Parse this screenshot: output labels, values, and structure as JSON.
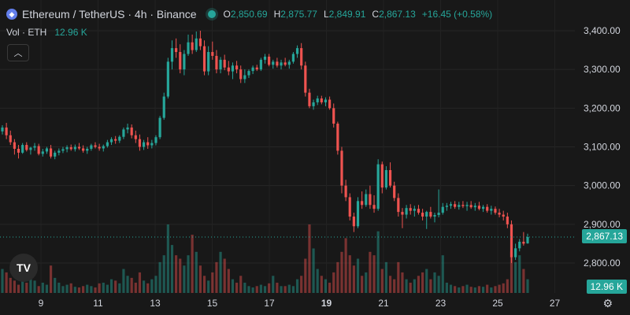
{
  "legend": {
    "symbol": "Ethereum / TetherUS · 4h · Binance",
    "symbol_icon": "ethereum-icon",
    "open_key": "O",
    "open": "2,850.69",
    "high_key": "H",
    "high": "2,875.77",
    "low_key": "L",
    "low": "2,849.91",
    "close_key": "C",
    "close": "2,867.13",
    "change": "+16.45 (+0.58%)"
  },
  "volume_legend": {
    "label": "Vol · ETH",
    "value": "12.96 K"
  },
  "collapse_icon": "chevron-up-icon",
  "logo_text": "TV",
  "current_price_tag": "2,867.13",
  "current_volume_tag": "12.96 K",
  "colors": {
    "up": "#26a69a",
    "down": "#ef5350",
    "bg": "#181818"
  },
  "chart_data": {
    "type": "candlestick",
    "price_axis_ticks": [
      "3,400.00",
      "3,300.00",
      "3,200.00",
      "3,100.00",
      "3,000.00",
      "2,900.00",
      "2,800.00"
    ],
    "price_range": [
      2780,
      3420
    ],
    "time_axis_ticks": [
      "9",
      "11",
      "13",
      "15",
      "17",
      "19",
      "21",
      "23",
      "25",
      "27"
    ],
    "time_axis_bold": [
      "19"
    ],
    "current_price": 2867.13,
    "candles": [
      [
        3140,
        3156,
        3132,
        3150
      ],
      [
        3150,
        3162,
        3120,
        3130
      ],
      [
        3130,
        3142,
        3105,
        3112
      ],
      [
        3112,
        3120,
        3080,
        3095
      ],
      [
        3095,
        3105,
        3070,
        3085
      ],
      [
        3085,
        3110,
        3082,
        3105
      ],
      [
        3105,
        3112,
        3088,
        3092
      ],
      [
        3092,
        3100,
        3080,
        3098
      ],
      [
        3098,
        3110,
        3090,
        3102
      ],
      [
        3102,
        3108,
        3078,
        3082
      ],
      [
        3082,
        3095,
        3075,
        3088
      ],
      [
        3088,
        3100,
        3082,
        3096
      ],
      [
        3096,
        3105,
        3070,
        3075
      ],
      [
        3075,
        3090,
        3068,
        3085
      ],
      [
        3085,
        3096,
        3078,
        3090
      ],
      [
        3090,
        3100,
        3084,
        3094
      ],
      [
        3094,
        3104,
        3086,
        3099
      ],
      [
        3099,
        3106,
        3090,
        3094
      ],
      [
        3094,
        3106,
        3088,
        3100
      ],
      [
        3100,
        3110,
        3092,
        3096
      ],
      [
        3096,
        3104,
        3085,
        3090
      ],
      [
        3090,
        3100,
        3082,
        3095
      ],
      [
        3095,
        3108,
        3090,
        3104
      ],
      [
        3104,
        3112,
        3096,
        3100
      ],
      [
        3100,
        3108,
        3090,
        3096
      ],
      [
        3096,
        3106,
        3088,
        3102
      ],
      [
        3102,
        3118,
        3098,
        3112
      ],
      [
        3112,
        3125,
        3105,
        3120
      ],
      [
        3120,
        3128,
        3108,
        3116
      ],
      [
        3116,
        3130,
        3110,
        3126
      ],
      [
        3126,
        3150,
        3120,
        3145
      ],
      [
        3145,
        3160,
        3135,
        3150
      ],
      [
        3150,
        3158,
        3122,
        3130
      ],
      [
        3130,
        3142,
        3110,
        3120
      ],
      [
        3120,
        3132,
        3090,
        3100
      ],
      [
        3100,
        3118,
        3092,
        3112
      ],
      [
        3112,
        3125,
        3095,
        3104
      ],
      [
        3104,
        3118,
        3096,
        3110
      ],
      [
        3110,
        3130,
        3104,
        3125
      ],
      [
        3125,
        3180,
        3120,
        3175
      ],
      [
        3175,
        3240,
        3170,
        3230
      ],
      [
        3230,
        3330,
        3225,
        3320
      ],
      [
        3320,
        3375,
        3300,
        3355
      ],
      [
        3355,
        3380,
        3330,
        3345
      ],
      [
        3345,
        3365,
        3290,
        3300
      ],
      [
        3300,
        3350,
        3285,
        3340
      ],
      [
        3340,
        3390,
        3335,
        3370
      ],
      [
        3370,
        3390,
        3340,
        3350
      ],
      [
        3350,
        3398,
        3345,
        3380
      ],
      [
        3380,
        3400,
        3350,
        3360
      ],
      [
        3360,
        3375,
        3285,
        3295
      ],
      [
        3295,
        3360,
        3285,
        3345
      ],
      [
        3345,
        3372,
        3325,
        3335
      ],
      [
        3335,
        3350,
        3290,
        3300
      ],
      [
        3300,
        3332,
        3290,
        3325
      ],
      [
        3325,
        3338,
        3298,
        3305
      ],
      [
        3305,
        3322,
        3285,
        3295
      ],
      [
        3295,
        3318,
        3275,
        3310
      ],
      [
        3310,
        3322,
        3290,
        3300
      ],
      [
        3300,
        3310,
        3265,
        3275
      ],
      [
        3275,
        3300,
        3265,
        3285
      ],
      [
        3285,
        3300,
        3278,
        3296
      ],
      [
        3296,
        3310,
        3288,
        3305
      ],
      [
        3305,
        3312,
        3296,
        3300
      ],
      [
        3300,
        3330,
        3296,
        3325
      ],
      [
        3325,
        3340,
        3315,
        3333
      ],
      [
        3333,
        3340,
        3308,
        3312
      ],
      [
        3312,
        3325,
        3302,
        3320
      ],
      [
        3320,
        3330,
        3305,
        3310
      ],
      [
        3310,
        3325,
        3300,
        3318
      ],
      [
        3318,
        3330,
        3308,
        3312
      ],
      [
        3312,
        3325,
        3302,
        3320
      ],
      [
        3320,
        3345,
        3315,
        3340
      ],
      [
        3340,
        3362,
        3330,
        3355
      ],
      [
        3355,
        3368,
        3300,
        3310
      ],
      [
        3310,
        3320,
        3230,
        3240
      ],
      [
        3240,
        3250,
        3200,
        3205
      ],
      [
        3205,
        3222,
        3196,
        3215
      ],
      [
        3215,
        3232,
        3208,
        3225
      ],
      [
        3225,
        3232,
        3210,
        3215
      ],
      [
        3215,
        3228,
        3205,
        3222
      ],
      [
        3222,
        3230,
        3196,
        3200
      ],
      [
        3200,
        3212,
        3150,
        3160
      ],
      [
        3160,
        3165,
        3080,
        3090
      ],
      [
        3090,
        3100,
        2980,
        3000
      ],
      [
        3000,
        3015,
        2960,
        2970
      ],
      [
        2970,
        2980,
        2910,
        2920
      ],
      [
        2920,
        2930,
        2880,
        2895
      ],
      [
        2895,
        2970,
        2890,
        2960
      ],
      [
        2960,
        2985,
        2940,
        2950
      ],
      [
        2950,
        2990,
        2945,
        2978
      ],
      [
        2978,
        3000,
        2940,
        2950
      ],
      [
        2950,
        2975,
        2930,
        2940
      ],
      [
        2940,
        3068,
        2935,
        3055
      ],
      [
        3055,
        3062,
        2980,
        2995
      ],
      [
        2995,
        3050,
        2990,
        3040
      ],
      [
        3040,
        3060,
        2995,
        3000
      ],
      [
        3000,
        3010,
        2960,
        2968
      ],
      [
        2968,
        2980,
        2920,
        2932
      ],
      [
        2932,
        2942,
        2890,
        2925
      ],
      [
        2925,
        2950,
        2915,
        2942
      ],
      [
        2942,
        2952,
        2925,
        2935
      ],
      [
        2935,
        2948,
        2920,
        2940
      ],
      [
        2940,
        2950,
        2925,
        2930
      ],
      [
        2930,
        2940,
        2910,
        2920
      ],
      [
        2920,
        2935,
        2888,
        2932
      ],
      [
        2932,
        2945,
        2915,
        2920
      ],
      [
        2920,
        2930,
        2905,
        2924
      ],
      [
        2924,
        2990,
        2918,
        2930
      ],
      [
        2930,
        2955,
        2925,
        2945
      ],
      [
        2945,
        2955,
        2935,
        2948
      ],
      [
        2948,
        2958,
        2940,
        2952
      ],
      [
        2952,
        2960,
        2940,
        2945
      ],
      [
        2945,
        2958,
        2938,
        2950
      ],
      [
        2950,
        2960,
        2942,
        2947
      ],
      [
        2947,
        2958,
        2935,
        2950
      ],
      [
        2950,
        2960,
        2940,
        2944
      ],
      [
        2944,
        2955,
        2935,
        2948
      ],
      [
        2948,
        2958,
        2936,
        2940
      ],
      [
        2940,
        2950,
        2932,
        2945
      ],
      [
        2945,
        2952,
        2930,
        2935
      ],
      [
        2935,
        2948,
        2925,
        2940
      ],
      [
        2940,
        2946,
        2925,
        2930
      ],
      [
        2930,
        2940,
        2918,
        2925
      ],
      [
        2925,
        2935,
        2910,
        2920
      ],
      [
        2920,
        2930,
        2890,
        2900
      ],
      [
        2900,
        2910,
        2800,
        2815
      ],
      [
        2815,
        2850,
        2808,
        2838
      ],
      [
        2838,
        2862,
        2830,
        2855
      ],
      [
        2855,
        2880,
        2845,
        2850
      ],
      [
        2850.69,
        2875.77,
        2849.91,
        2867.13
      ]
    ],
    "volumes": [
      0.35,
      0.3,
      0.22,
      0.18,
      0.12,
      0.2,
      0.15,
      0.28,
      0.18,
      0.1,
      0.15,
      0.12,
      0.4,
      0.22,
      0.15,
      0.1,
      0.12,
      0.14,
      0.09,
      0.08,
      0.1,
      0.12,
      0.1,
      0.08,
      0.14,
      0.15,
      0.12,
      0.2,
      0.18,
      0.14,
      0.35,
      0.25,
      0.22,
      0.15,
      0.3,
      0.18,
      0.14,
      0.2,
      0.25,
      0.45,
      0.55,
      1.0,
      0.7,
      0.55,
      0.5,
      0.4,
      0.55,
      0.85,
      0.6,
      0.4,
      0.25,
      0.18,
      0.3,
      0.45,
      0.6,
      0.5,
      0.35,
      0.2,
      0.15,
      0.25,
      0.15,
      0.1,
      0.08,
      0.1,
      0.12,
      0.1,
      0.14,
      0.25,
      0.15,
      0.1,
      0.1,
      0.12,
      0.1,
      0.2,
      0.25,
      0.5,
      1.0,
      0.65,
      0.35,
      0.25,
      0.2,
      0.15,
      0.3,
      0.45,
      0.6,
      0.8,
      0.55,
      0.4,
      0.5,
      0.25,
      0.3,
      0.6,
      0.55,
      0.9,
      0.35,
      0.45,
      0.25,
      0.2,
      0.45,
      0.3,
      0.2,
      0.15,
      0.2,
      0.25,
      0.3,
      0.35,
      0.2,
      0.3,
      0.25,
      0.55,
      0.15,
      0.12,
      0.1,
      0.08,
      0.1,
      0.12,
      0.09,
      0.08,
      0.1,
      0.09,
      0.12,
      0.08,
      0.1,
      0.12,
      0.14,
      0.2,
      0.6,
      0.45,
      0.55,
      0.35,
      0.2
    ]
  }
}
